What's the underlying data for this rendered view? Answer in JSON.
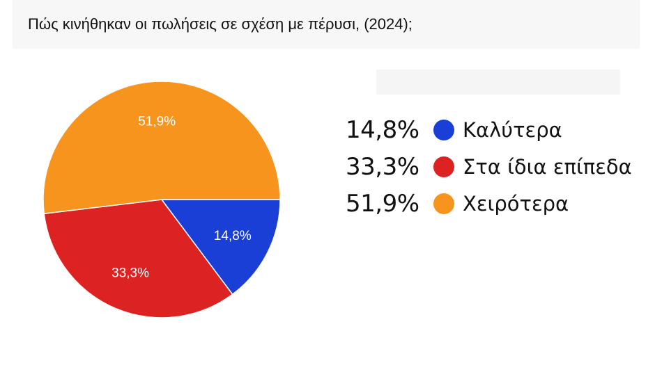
{
  "title": "Πώς κινήθηκαν οι πωλήσεις σε σχέση με πέρυσι, (2024);",
  "chart_data": {
    "type": "pie",
    "slices": [
      {
        "label": "Καλύτερα",
        "value": 14.8,
        "value_label": "14,8%",
        "color": "#1a3fd6"
      },
      {
        "label": "Στα ίδια επίπεδα",
        "value": 33.3,
        "value_label": "33,3%",
        "color": "#dd2222"
      },
      {
        "label": "Χειρότερα",
        "value": 51.9,
        "value_label": "51,9%",
        "color": "#f7941d"
      }
    ],
    "legend_position": "right"
  }
}
